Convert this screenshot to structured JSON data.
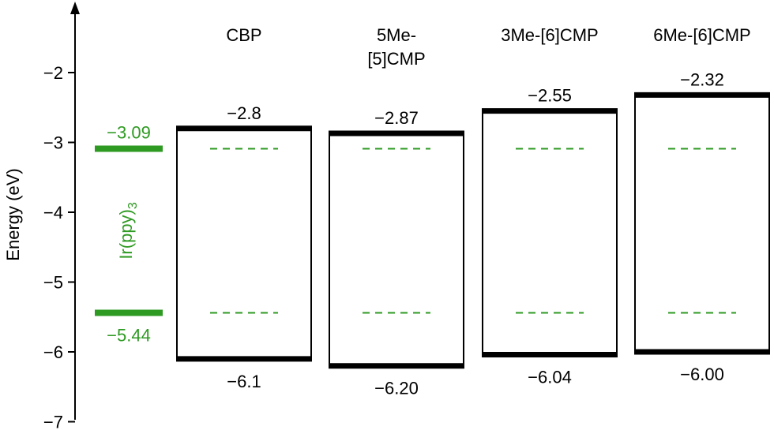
{
  "chart_data": {
    "type": "energy-level-diagram",
    "ylabel": "Energy (eV)",
    "ylim": [
      -7.0,
      -1.1
    ],
    "yticks": [
      -2,
      -3,
      -4,
      -5,
      -6,
      -7
    ],
    "ytick_labels": [
      "−2",
      "−3",
      "−4",
      "−5",
      "−6",
      "−7"
    ],
    "dopant": {
      "name_main": "Ir(ppy)",
      "name_sub": "3",
      "lumo": -3.09,
      "homo": -5.44,
      "lumo_label": "−3.09",
      "homo_label": "−5.44",
      "color": "#2e9a22"
    },
    "hosts": [
      {
        "name_lines": [
          "CBP"
        ],
        "lumo": -2.8,
        "homo": -6.1,
        "lumo_label": "−2.8",
        "homo_label": "−6.1"
      },
      {
        "name_lines": [
          "5Me-",
          "[5]CMP"
        ],
        "lumo": -2.87,
        "homo": -6.2,
        "lumo_label": "−2.87",
        "homo_label": "−6.20"
      },
      {
        "name_lines": [
          "3Me-[6]CMP"
        ],
        "lumo": -2.55,
        "homo": -6.04,
        "lumo_label": "−2.55",
        "homo_label": "−6.04"
      },
      {
        "name_lines": [
          "6Me-[6]CMP"
        ],
        "lumo": -2.32,
        "homo": -6.0,
        "lumo_label": "−2.32",
        "homo_label": "−6.00"
      }
    ],
    "colors": {
      "host_line": "#000000",
      "dopant": "#2e9a22"
    }
  }
}
